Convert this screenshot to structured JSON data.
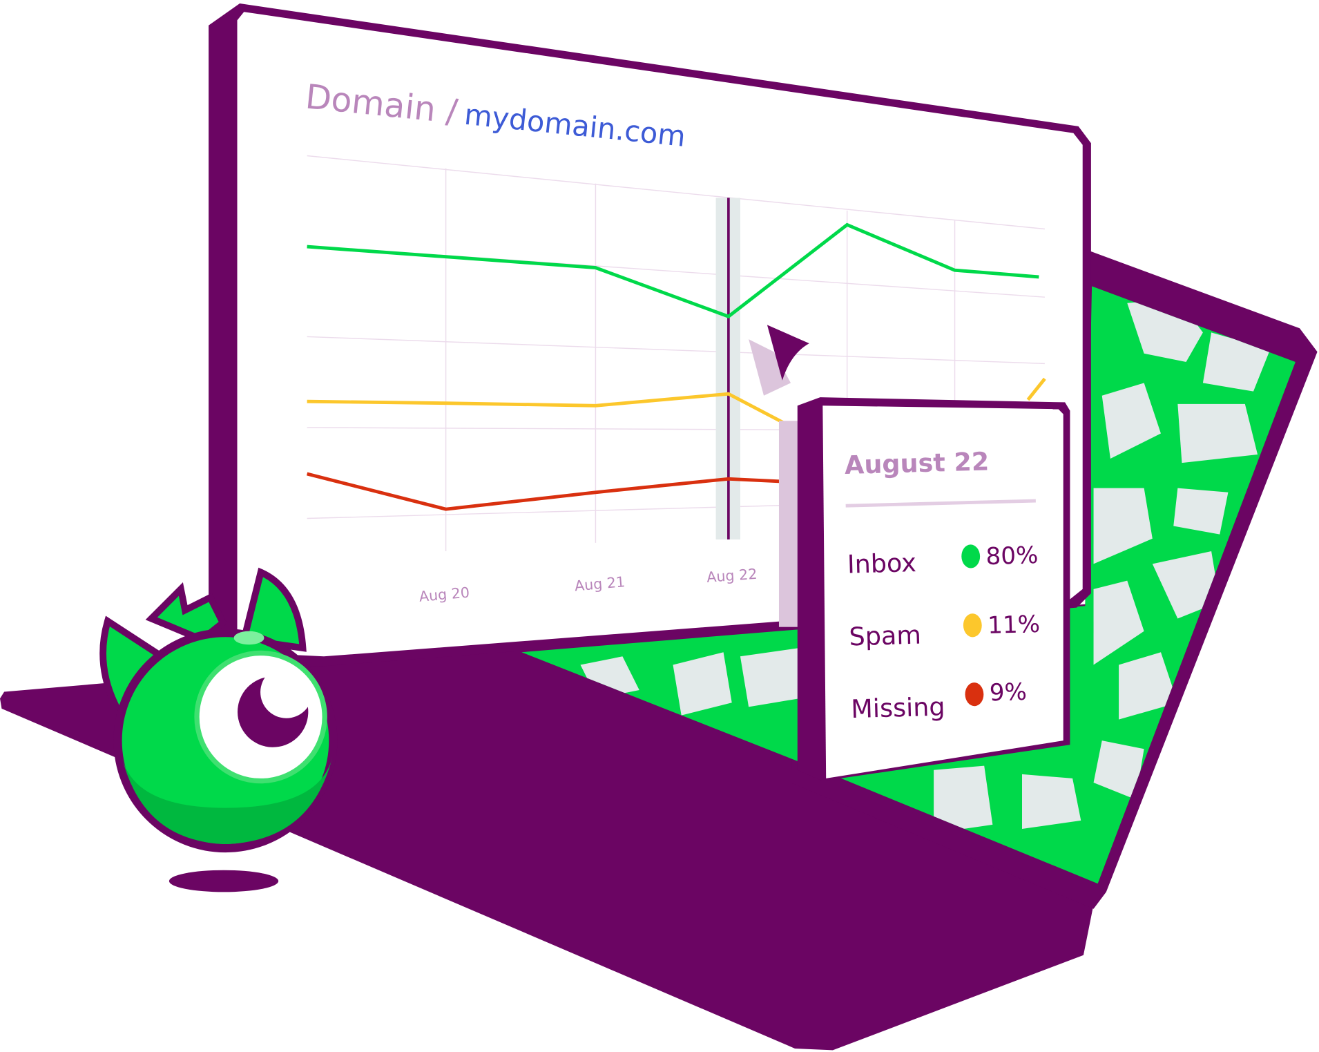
{
  "header": {
    "breadcrumb_root": "Domain /",
    "domain": "mydomain.com"
  },
  "chart": {
    "x_labels": [
      "Aug 20",
      "Aug 21",
      "Aug 22"
    ],
    "selected": "Aug 22",
    "series_colors": {
      "inbox": "#00d94a",
      "spam": "#fcc72c",
      "missing": "#d9300f"
    }
  },
  "tooltip": {
    "date": "August 22",
    "rows": [
      {
        "label": "Inbox",
        "value": "80%",
        "color": "#00d94a"
      },
      {
        "label": "Spam",
        "value": "11%",
        "color": "#fcc72c"
      },
      {
        "label": "Missing",
        "value": "9%",
        "color": "#d9300f"
      }
    ]
  },
  "colors": {
    "brand_purple": "#6b0563",
    "accent_green": "#00d94a",
    "pattern_gray": "#e3eaea"
  },
  "icons": {
    "cursor": "cursor-arrow-icon",
    "mascot": "one-eyed-monster-mascot"
  }
}
